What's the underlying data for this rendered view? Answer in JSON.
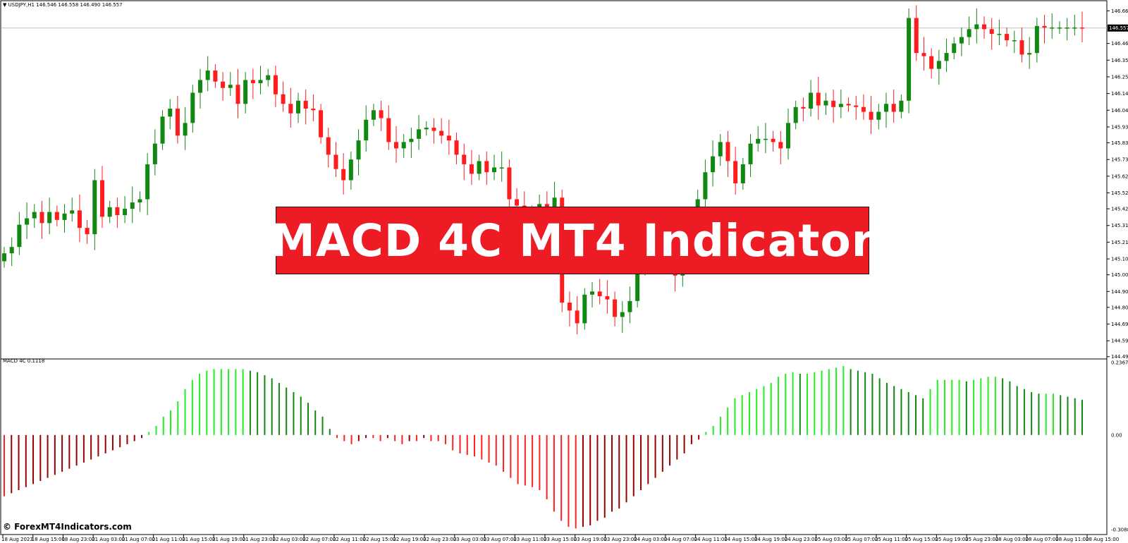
{
  "header": {
    "symbol": "USDJPY,H1",
    "ohlc": "146.546 146.558 146.490 146.557"
  },
  "indicator": {
    "label": "MACD 4C 0.1118"
  },
  "banner": {
    "title": "MACD 4C MT4 Indicator"
  },
  "watermark": "© ForexMT4Indicators.com",
  "colors": {
    "bull": "#118811",
    "bear": "#ff1c1c",
    "hist_up_rising": "#22ee22",
    "hist_up_falling": "#118811",
    "hist_down_falling": "#ff2020",
    "hist_down_rising": "#990000",
    "banner": "#ed1c24"
  },
  "chart_data": [
    {
      "type": "candlestick",
      "symbol": "USDJPY",
      "timeframe": "H1",
      "current_price": "146.557",
      "y_ticks": [
        "146.665",
        "146.460",
        "146.355",
        "146.250",
        "146.145",
        "146.040",
        "145.935",
        "145.835",
        "145.730",
        "145.625",
        "145.520",
        "145.420",
        "145.315",
        "145.210",
        "145.105",
        "145.005",
        "144.900",
        "144.800",
        "144.695",
        "144.590",
        "144.490"
      ],
      "ylim": [
        144.48,
        146.68
      ],
      "x_ticks": [
        "18 Aug 2023",
        "18 Aug 15:00",
        "18 Aug 23:00",
        "21 Aug 03:00",
        "21 Aug 07:00",
        "21 Aug 11:00",
        "21 Aug 15:00",
        "21 Aug 19:00",
        "21 Aug 23:00",
        "22 Aug 03:00",
        "22 Aug 07:00",
        "22 Aug 11:00",
        "22 Aug 15:00",
        "22 Aug 19:00",
        "22 Aug 23:00",
        "23 Aug 03:00",
        "23 Aug 07:00",
        "23 Aug 11:00",
        "23 Aug 15:00",
        "23 Aug 19:00",
        "23 Aug 23:00",
        "24 Aug 03:00",
        "24 Aug 07:00",
        "24 Aug 11:00",
        "24 Aug 15:00",
        "24 Aug 19:00",
        "24 Aug 23:00",
        "25 Aug 03:00",
        "25 Aug 07:00",
        "25 Aug 11:00",
        "25 Aug 15:00",
        "25 Aug 19:00",
        "25 Aug 23:00",
        "28 Aug 03:00",
        "28 Aug 07:00",
        "28 Aug 11:00",
        "28 Aug 15:00"
      ],
      "close": [
        145.14,
        145.18,
        145.32,
        145.36,
        145.4,
        145.33,
        145.4,
        145.35,
        145.39,
        145.41,
        145.3,
        145.26,
        145.6,
        145.37,
        145.43,
        145.38,
        145.42,
        145.46,
        145.48,
        145.7,
        145.83,
        146.0,
        146.05,
        145.88,
        145.96,
        146.15,
        146.23,
        146.29,
        146.22,
        146.18,
        146.2,
        146.08,
        146.23,
        146.21,
        146.23,
        146.26,
        146.14,
        146.08,
        146.02,
        146.1,
        146.05,
        146.04,
        145.87,
        145.76,
        145.67,
        145.6,
        145.73,
        145.85,
        145.98,
        146.04,
        145.99,
        145.84,
        145.8,
        145.84,
        145.86,
        145.92,
        145.93,
        145.91,
        145.88,
        145.85,
        145.76,
        145.7,
        145.64,
        145.72,
        145.65,
        145.68,
        145.68,
        145.48,
        145.44,
        145.38,
        145.4,
        145.45,
        145.42,
        145.49,
        144.83,
        144.78,
        144.7,
        144.88,
        144.9,
        144.87,
        144.85,
        144.74,
        144.77,
        144.84,
        145.08,
        145.25,
        145.3,
        145.17,
        145.22,
        145.0,
        145.2,
        145.25,
        145.48,
        145.65,
        145.75,
        145.84,
        145.72,
        145.58,
        145.7,
        145.83,
        145.86,
        145.86,
        145.84,
        145.8,
        145.96,
        146.06,
        146.05,
        146.15,
        146.07,
        146.1,
        146.06,
        146.08,
        146.07,
        146.06,
        146.03,
        145.98,
        146.03,
        146.08,
        146.03,
        146.1,
        146.62,
        146.4,
        146.38,
        146.3,
        146.35,
        146.4,
        146.46,
        146.5,
        146.55,
        146.58,
        146.55,
        146.52,
        146.52,
        146.48,
        146.48,
        146.39,
        146.4,
        146.57,
        146.56,
        146.56,
        146.56,
        146.56,
        146.56,
        146.557
      ]
    },
    {
      "type": "bar",
      "name": "MACD 4C",
      "label": "MACD 4C 0.1118",
      "y_ticks": [
        "0.2367",
        "0.00",
        "-0.3088"
      ],
      "ylim": [
        -0.3088,
        0.2367
      ],
      "values": [
        -0.2,
        -0.19,
        -0.18,
        -0.17,
        -0.16,
        -0.15,
        -0.14,
        -0.13,
        -0.12,
        -0.11,
        -0.1,
        -0.09,
        -0.08,
        -0.07,
        -0.06,
        -0.05,
        -0.04,
        -0.03,
        -0.02,
        -0.01,
        0.01,
        0.03,
        0.06,
        0.08,
        0.11,
        0.15,
        0.18,
        0.2,
        0.21,
        0.215,
        0.215,
        0.215,
        0.215,
        0.215,
        0.21,
        0.205,
        0.195,
        0.185,
        0.17,
        0.155,
        0.14,
        0.125,
        0.105,
        0.08,
        0.06,
        0.02,
        -0.01,
        -0.02,
        -0.03,
        -0.02,
        -0.01,
        -0.01,
        -0.02,
        -0.01,
        -0.02,
        -0.03,
        -0.02,
        -0.02,
        -0.01,
        -0.02,
        -0.02,
        -0.03,
        -0.05,
        -0.06,
        -0.065,
        -0.07,
        -0.08,
        -0.09,
        -0.1,
        -0.12,
        -0.14,
        -0.16,
        -0.165,
        -0.17,
        -0.18,
        -0.21,
        -0.25,
        -0.28,
        -0.3,
        -0.305,
        -0.3,
        -0.295,
        -0.28,
        -0.27,
        -0.25,
        -0.24,
        -0.22,
        -0.2,
        -0.18,
        -0.16,
        -0.14,
        -0.12,
        -0.1,
        -0.08,
        -0.06,
        -0.03,
        -0.015,
        0.01,
        0.03,
        0.06,
        0.09,
        0.12,
        0.13,
        0.14,
        0.15,
        0.16,
        0.17,
        0.19,
        0.2,
        0.205,
        0.2,
        0.2,
        0.205,
        0.21,
        0.215,
        0.22,
        0.225,
        0.215,
        0.21,
        0.205,
        0.2,
        0.185,
        0.17,
        0.16,
        0.15,
        0.14,
        0.13,
        0.12,
        0.15,
        0.18,
        0.18,
        0.18,
        0.18,
        0.175,
        0.18,
        0.185,
        0.19,
        0.19,
        0.185,
        0.175,
        0.16,
        0.15,
        0.14,
        0.135,
        0.135,
        0.135,
        0.13,
        0.125,
        0.12,
        0.115
      ]
    }
  ]
}
